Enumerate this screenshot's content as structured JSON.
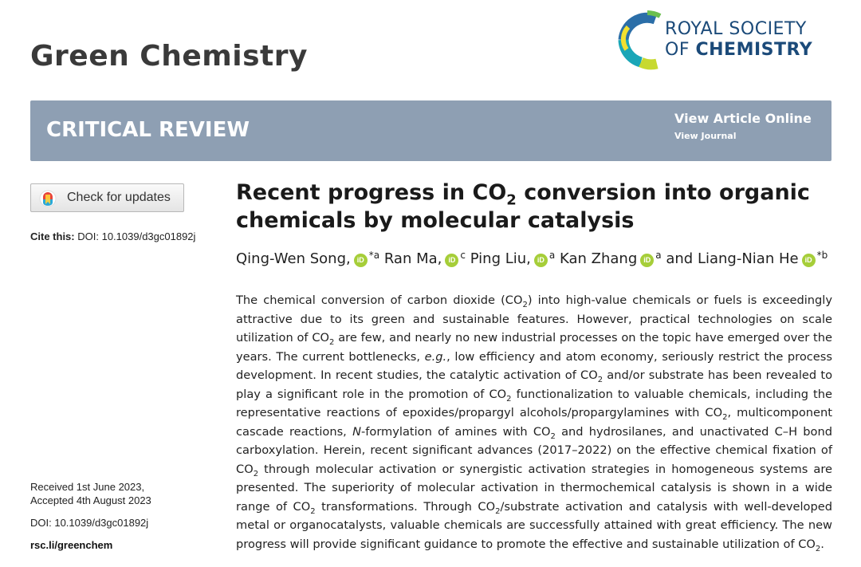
{
  "journal": {
    "title": "Green Chemistry"
  },
  "publisher": {
    "line1": "ROYAL SOCIETY",
    "line2_prefix": "OF",
    "line2_bold": "CHEMISTRY"
  },
  "banner": {
    "type": "CRITICAL REVIEW",
    "view_article": "View Article Online",
    "view_journal": "View Journal"
  },
  "sidebar": {
    "check_updates": "Check for updates",
    "cite_label": "Cite this:",
    "cite_value": "DOI: 10.1039/d3gc01892j",
    "received": "Received 1st June 2023,",
    "accepted": "Accepted 4th August 2023",
    "doi": "DOI: 10.1039/d3gc01892j",
    "link": "rsc.li/greenchem"
  },
  "article": {
    "title_part1": "Recent progress in CO",
    "title_sub": "2",
    "title_part2": " conversion into organic chemicals by molecular catalysis",
    "orcid_label": "iD",
    "authors": [
      {
        "name": "Qing-Wen Song,",
        "aff": "*a"
      },
      {
        "name": "Ran Ma,",
        "aff": "c"
      },
      {
        "name": "Ping Liu,",
        "aff": "a"
      },
      {
        "name": "Kan Zhang",
        "aff": "a"
      },
      {
        "name": "and Liang-Nian He",
        "aff": "*b"
      }
    ]
  },
  "abstract_segments": [
    "The chemical conversion of carbon dioxide (CO",
    "2",
    ") into high-value chemicals or fuels is exceedingly attractive due to its green and sustainable features. However, practical technologies on scale utilization of CO",
    "2",
    " are few, and nearly no new industrial processes on the topic have emerged over the years. The current bottlenecks, ",
    "e.g.",
    ", low efficiency and atom economy, seriously restrict the process development. In recent studies, the catalytic activation of CO",
    "2",
    " and/or substrate has been revealed to play a significant role in the promotion of CO",
    "2",
    " functionalization to valuable chemicals, including the representative reactions of epoxides/propargyl alcohols/propargylamines with CO",
    "2",
    ", multicomponent cascade reactions, ",
    "N",
    "-formylation of amines with CO",
    "2",
    " and hydrosilanes, and unactivated C–H bond carboxylation. Herein, recent significant advances (2017–2022) on the effective chemical fixation of CO",
    "2",
    " through molecular activation or synergistic activation strategies in homogeneous systems are presented. The superiority of molecular activation in thermochemical catalysis is shown in a wide range of CO",
    "2",
    " transformations. Through CO",
    "2",
    "/substrate activation and catalysis with well-developed metal or organocatalysts, valuable chemicals are successfully attained with great efficiency. The new progress will provide significant guidance to promote the effective and sustainable utilization of CO",
    "2",
    "."
  ],
  "colors": {
    "banner": "#8e9fb3",
    "rsc_blue": "#1b4a79",
    "orcid_green": "#a6ce39"
  }
}
